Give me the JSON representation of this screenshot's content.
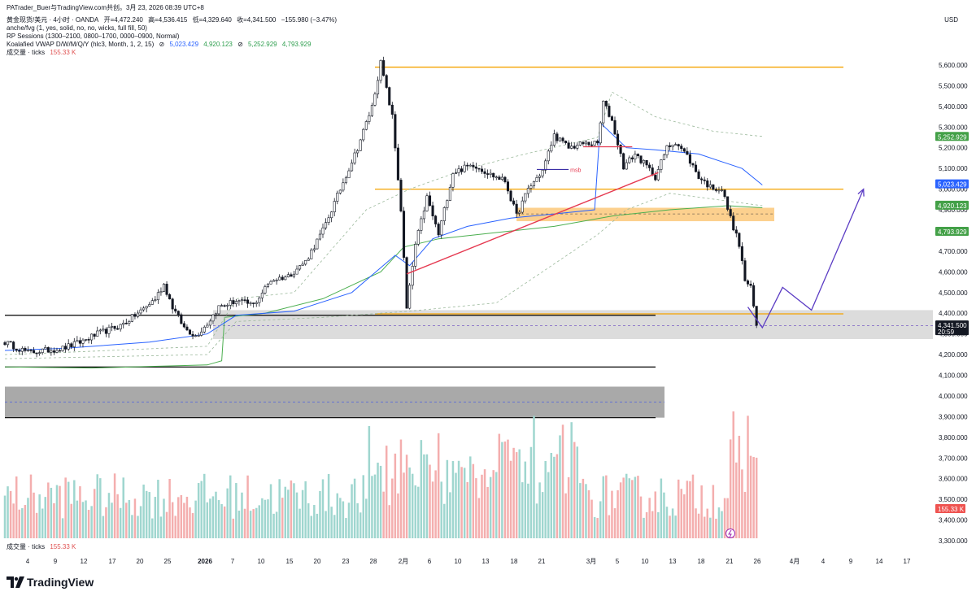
{
  "header": {
    "share_text": "PATrader_Buer与TradingView.com共创。3月 23, 2026 08:39 UTC+8",
    "symbol_line": "黄金现货/美元 · 4小时 · OANDA",
    "open_label": "开=4,472.240",
    "high_label": "高=4,536.415",
    "low_label": "低=4,329.640",
    "close_label": "收=4,341.500",
    "change_label": "−155.980 (−3.47%)",
    "indicator1": "anche/fvg (1, yes, solid, no, no, wicks, full fill, 50)",
    "indicator2": "RP Sessions (1300–2100, 0800–1700, 0000–0900, Normal)",
    "indicator3": "Koalafied VWAP D/W/M/Q/Y (hlc3, Month, 1, 2, 15)",
    "vwap_symbol_a": "⊘",
    "vwap_symbol_b": "⊘",
    "vwap_v1": "5,023.429",
    "vwap_v2": "4,920.123",
    "vwap_v3": "5,252.929",
    "vwap_v4": "4,793.929",
    "volume_label": "成交量 · ticks",
    "volume_value": "155.33 K"
  },
  "footer": {
    "volume_label": "成交量 · ticks",
    "volume_value": "155.33 K",
    "brand": "TradingView"
  },
  "axis": {
    "currency": "USD"
  },
  "colors": {
    "up": "#26a69a",
    "down": "#ef5350",
    "candle": "#131722",
    "orange": "#f5a300",
    "vwap_blue": "#2962ff",
    "vwap_green": "#4caf50",
    "trend_red": "#e53950",
    "projection": "#5b3cc4"
  },
  "chart_data": {
    "type": "candlestick",
    "title": "黄金现货/美元 · 4小时 · OANDA",
    "timeframe": "4h",
    "x_ticks": [
      "4",
      "9",
      "12",
      "17",
      "20",
      "25",
      "2026",
      "7",
      "10",
      "15",
      "20",
      "23",
      "28",
      "2月",
      "6",
      "10",
      "13",
      "18",
      "21",
      "3月",
      "5",
      "10",
      "13",
      "18",
      "21",
      "26",
      "4月",
      "4",
      "9",
      "14",
      "17"
    ],
    "y_ticks": [
      "5,600.000",
      "5,500.000",
      "5,400.000",
      "5,300.000",
      "5,200.000",
      "5,100.000",
      "5,000.000",
      "4,900.000",
      "4,800.000",
      "4,700.000",
      "4,600.000",
      "4,500.000",
      "4,400.000",
      "4,300.000",
      "4,200.000",
      "4,100.000",
      "4,000.000",
      "3,900.000",
      "3,800.000",
      "3,700.000",
      "3,600.000",
      "3,500.000",
      "3,400.000",
      "3,300.000"
    ],
    "ylim": [
      3250,
      5660
    ],
    "visible_data_index_range": [
      0,
      260
    ],
    "index_axis_range": [
      0,
      321
    ],
    "anchors": [
      [
        0,
        4260
      ],
      [
        8,
        4210
      ],
      [
        20,
        4230
      ],
      [
        26,
        4260
      ],
      [
        32,
        4300
      ],
      [
        40,
        4340
      ],
      [
        47,
        4410
      ],
      [
        52,
        4470
      ],
      [
        55,
        4540
      ],
      [
        58,
        4430
      ],
      [
        62,
        4330
      ],
      [
        66,
        4290
      ],
      [
        70,
        4350
      ],
      [
        74,
        4430
      ],
      [
        80,
        4460
      ],
      [
        86,
        4440
      ],
      [
        92,
        4560
      ],
      [
        98,
        4580
      ],
      [
        104,
        4650
      ],
      [
        110,
        4800
      ],
      [
        116,
        5000
      ],
      [
        122,
        5200
      ],
      [
        127,
        5400
      ],
      [
        130,
        5610
      ],
      [
        134,
        5350
      ],
      [
        137,
        4900
      ],
      [
        139,
        4420
      ],
      [
        142,
        4730
      ],
      [
        146,
        4960
      ],
      [
        150,
        4780
      ],
      [
        155,
        5080
      ],
      [
        162,
        5120
      ],
      [
        168,
        5070
      ],
      [
        173,
        5040
      ],
      [
        177,
        4870
      ],
      [
        181,
        5000
      ],
      [
        186,
        5090
      ],
      [
        190,
        5260
      ],
      [
        195,
        5200
      ],
      [
        200,
        5220
      ],
      [
        205,
        5220
      ],
      [
        207,
        5420
      ],
      [
        210,
        5330
      ],
      [
        214,
        5110
      ],
      [
        218,
        5170
      ],
      [
        222,
        5110
      ],
      [
        225,
        5060
      ],
      [
        229,
        5200
      ],
      [
        232,
        5230
      ],
      [
        236,
        5160
      ],
      [
        240,
        5060
      ],
      [
        244,
        5010
      ],
      [
        248,
        5000
      ],
      [
        251,
        4860
      ],
      [
        254,
        4730
      ],
      [
        256,
        4560
      ],
      [
        258,
        4520
      ],
      [
        260,
        4342
      ]
    ],
    "last_candle": {
      "open": 4472.24,
      "high": 4536.415,
      "low": 4329.64,
      "close": 4341.5
    },
    "series_vwap": [
      {
        "name": "VWAP blue (monthly)",
        "value": 5023.429,
        "color": "#2962ff"
      },
      {
        "name": "VWAP green",
        "value": 4920.123,
        "color": "#4caf50"
      },
      {
        "name": "VWAP upper band",
        "value": 5252.929,
        "color": "#4caf50"
      },
      {
        "name": "VWAP lower band",
        "value": 4793.929,
        "color": "#4caf50"
      }
    ],
    "price_labels": [
      {
        "value": 5252.929,
        "text": "5,252.929",
        "color": "#43a047"
      },
      {
        "value": 5023.429,
        "text": "5,023.429",
        "color": "#2962ff"
      },
      {
        "value": 4920.123,
        "text": "4,920.123",
        "color": "#43a047"
      },
      {
        "value": 4793.929,
        "text": "4,793.929",
        "color": "#43a047"
      },
      {
        "value": 4341.5,
        "text": "4,341.500",
        "countdown": "20:59",
        "color": "#131722"
      }
    ],
    "volume_badge": "155.33 K",
    "annotations": {
      "resistance_top": 5590,
      "mid_line": 5000,
      "support_line": 4397,
      "grey_zone": [
        4275,
        4415
      ],
      "current_dashed": 4340,
      "orange_zone": [
        4845,
        4910
      ],
      "black_line_upper": 4390,
      "black_line_lower": 4140,
      "lower_box": [
        3895,
        4045
      ],
      "lower_box_dash": 3970,
      "msb_label": "msb",
      "msb_line": 5095,
      "red_segment": 5205,
      "trend_red": [
        [
          139,
          4590
        ],
        [
          226,
          5080
        ]
      ],
      "projection_path": [
        [
          257,
          4430
        ],
        [
          262,
          4330
        ],
        [
          269,
          4525
        ],
        [
          279,
          4415
        ],
        [
          297,
          5000
        ]
      ]
    },
    "volume_max": 100
  }
}
